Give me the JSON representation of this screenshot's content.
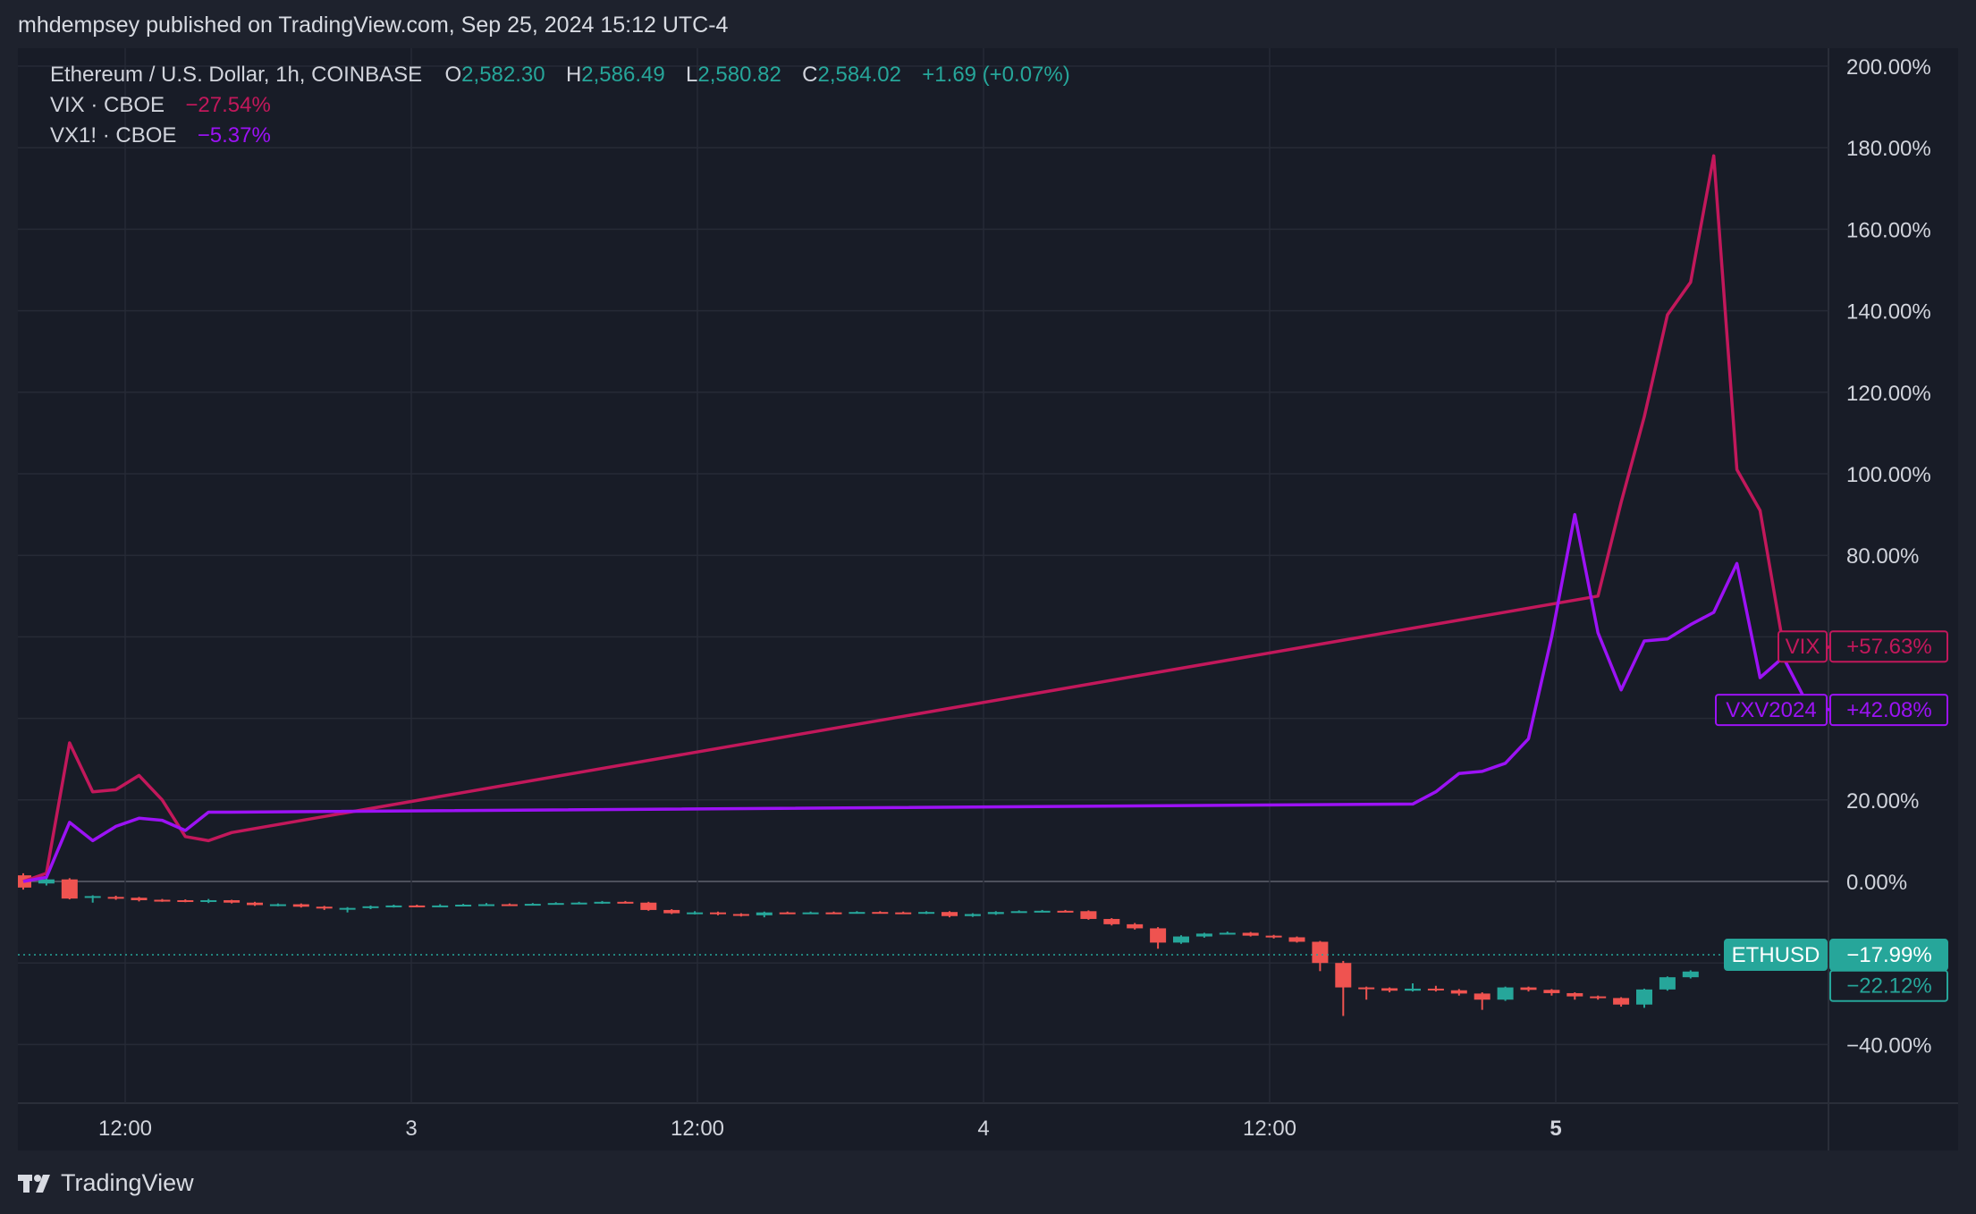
{
  "header": {
    "text": "mhdempsey published on TradingView.com, Sep 25, 2024 15:12 UTC-4"
  },
  "footer": {
    "brand": "TradingView",
    "logo_icon": "tradingview-logo-icon"
  },
  "legend": {
    "eth": {
      "symbol": "Ethereum / U.S. Dollar, 1h, COINBASE",
      "o_label": "O",
      "o": "2,582.30",
      "h_label": "H",
      "h": "2,586.49",
      "l_label": "L",
      "l": "2,580.82",
      "c_label": "C",
      "c": "2,584.02",
      "change": "+1.69 (+0.07%)"
    },
    "vix": {
      "symbol": "VIX · CBOE",
      "change": "−27.54%"
    },
    "vx1": {
      "symbol": "VX1! · CBOE",
      "change": "−5.37%"
    }
  },
  "colors": {
    "vix": "#c2185b",
    "vx1": "#9c12f5",
    "up": "#26a69a",
    "down": "#ef5350",
    "grid": "#262a36",
    "axis_text": "#d1d4dc",
    "bg": "#181c27"
  },
  "chart_data": {
    "type": "line",
    "x_labels": [
      "12:00",
      "3",
      "12:00",
      "4",
      "12:00",
      "5"
    ],
    "y_ticks": [
      "200.00%",
      "180.00%",
      "160.00%",
      "140.00%",
      "120.00%",
      "100.00%",
      "80.00%",
      "20.00%",
      "0.00%",
      "−40.00%"
    ],
    "ylim": [
      -54,
      202
    ],
    "series": [
      {
        "name": "VIX",
        "label": "VIX",
        "last": "+57.63%",
        "color": "#c2185b",
        "x": [
          0,
          1,
          2,
          3,
          4,
          5,
          6,
          7,
          8,
          9,
          68,
          69,
          70,
          71,
          72,
          73,
          74,
          75,
          76,
          77,
          78
        ],
        "y": [
          0,
          2,
          34,
          22,
          22.5,
          26,
          20,
          11,
          10,
          12,
          70,
          93,
          114,
          139,
          147,
          178,
          101,
          91,
          58,
          55,
          57.6
        ]
      },
      {
        "name": "VXV2024",
        "label": "VXV2024",
        "last": "+42.08%",
        "color": "#9c12f5",
        "x": [
          0,
          1,
          2,
          3,
          4,
          5,
          6,
          7,
          8,
          9,
          60,
          61,
          62,
          63,
          64,
          65,
          66,
          67,
          68,
          69,
          70,
          71,
          72,
          73,
          74,
          75,
          76,
          77,
          78
        ],
        "y": [
          0,
          1,
          14.5,
          10,
          13.5,
          15.5,
          15,
          12.5,
          17,
          17,
          19,
          22,
          26.5,
          27,
          29,
          35,
          60,
          90,
          61,
          47,
          59,
          59.5,
          63,
          66,
          78,
          50,
          55,
          44,
          42.08
        ]
      },
      {
        "name": "ETHUSD",
        "label": "ETHUSD",
        "last": "−17.99%",
        "color": "#26a69a"
      }
    ],
    "candles": [
      [
        0,
        1.5,
        -1.5,
        2,
        -2
      ],
      [
        1,
        -0.5,
        0.5,
        1,
        -1
      ],
      [
        2,
        0.5,
        -4.2,
        0.8,
        -4.4
      ],
      [
        3,
        -4,
        -3.6,
        -3.4,
        -5.2
      ],
      [
        4,
        -3.8,
        -4.2,
        -3.5,
        -4.5
      ],
      [
        5,
        -4,
        -4.6,
        -3.8,
        -4.9
      ],
      [
        6,
        -4.5,
        -4.7,
        -4.3,
        -5
      ],
      [
        7,
        -4.6,
        -4.9,
        -4.4,
        -5.1
      ],
      [
        8,
        -5,
        -4.6,
        -4.3,
        -5.3
      ],
      [
        9,
        -4.6,
        -5.2,
        -4.5,
        -5.4
      ],
      [
        10,
        -5.2,
        -5.8,
        -5,
        -6
      ],
      [
        11,
        -5.8,
        -5.6,
        -5.4,
        -6.1
      ],
      [
        12,
        -5.6,
        -6.2,
        -5.4,
        -6.4
      ],
      [
        13,
        -6.2,
        -6.6,
        -6,
        -7
      ],
      [
        14,
        -6.6,
        -6.5,
        -6.3,
        -7.6
      ],
      [
        15,
        -6.5,
        -6.1,
        -5.9,
        -6.8
      ],
      [
        16,
        -6.1,
        -5.9,
        -5.7,
        -6.4
      ],
      [
        17,
        -5.9,
        -6.1,
        -5.7,
        -6.3
      ],
      [
        18,
        -6.1,
        -5.9,
        -5.6,
        -6.3
      ],
      [
        19,
        -5.9,
        -5.7,
        -5.5,
        -6.1
      ],
      [
        20,
        -5.7,
        -5.6,
        -5.3,
        -6
      ],
      [
        21,
        -5.6,
        -5.7,
        -5.4,
        -5.9
      ],
      [
        22,
        -5.7,
        -5.5,
        -5.3,
        -5.9
      ],
      [
        23,
        -5.5,
        -5.3,
        -5.1,
        -5.7
      ],
      [
        24,
        -5.3,
        -5.2,
        -5,
        -5.5
      ],
      [
        25,
        -5.2,
        -5.0,
        -4.8,
        -5.5
      ],
      [
        26,
        -5.0,
        -5.2,
        -4.8,
        -5.4
      ],
      [
        27,
        -5.2,
        -7.0,
        -5,
        -7.2
      ],
      [
        28,
        -7,
        -7.8,
        -6.8,
        -8
      ],
      [
        29,
        -7.8,
        -7.6,
        -7.3,
        -8.1
      ],
      [
        30,
        -7.6,
        -8,
        -7.4,
        -8.3
      ],
      [
        31,
        -8,
        -8.3,
        -7.8,
        -8.6
      ],
      [
        32,
        -8.3,
        -7.6,
        -7.4,
        -8.8
      ],
      [
        33,
        -7.6,
        -7.8,
        -7.4,
        -8
      ],
      [
        34,
        -7.8,
        -7.6,
        -7.4,
        -8
      ],
      [
        35,
        -7.6,
        -7.7,
        -7.4,
        -7.9
      ],
      [
        36,
        -7.7,
        -7.5,
        -7.3,
        -7.9
      ],
      [
        37,
        -7.5,
        -7.6,
        -7.3,
        -7.8
      ],
      [
        38,
        -7.6,
        -7.8,
        -7.4,
        -8
      ],
      [
        39,
        -7.8,
        -7.5,
        -7.3,
        -8
      ],
      [
        40,
        -7.5,
        -8.5,
        -7.3,
        -8.8
      ],
      [
        41,
        -8.5,
        -8,
        -7.8,
        -8.7
      ],
      [
        42,
        -8,
        -7.5,
        -7.3,
        -8.2
      ],
      [
        43,
        -7.5,
        -7.3,
        -7.1,
        -7.7
      ],
      [
        44,
        -7.3,
        -7.2,
        -7,
        -7.5
      ],
      [
        45,
        -7.2,
        -7.3,
        -7,
        -7.5
      ],
      [
        46,
        -7.3,
        -9.2,
        -7.1,
        -9.4
      ],
      [
        47,
        -9.2,
        -10.5,
        -9,
        -10.8
      ],
      [
        48,
        -10.5,
        -11.5,
        -10.2,
        -11.8
      ],
      [
        49,
        -11.5,
        -15.0,
        -11.2,
        -16.5
      ],
      [
        50,
        -15,
        -13.5,
        -13.2,
        -15.3
      ],
      [
        51,
        -13.5,
        -12.8,
        -12.6,
        -13.8
      ],
      [
        52,
        -12.8,
        -12.6,
        -12.3,
        -13
      ],
      [
        53,
        -12.6,
        -13.3,
        -12.4,
        -13.5
      ],
      [
        54,
        -13.3,
        -13.7,
        -13.1,
        -14
      ],
      [
        55,
        -13.7,
        -14.8,
        -13.5,
        -15
      ],
      [
        56,
        -14.8,
        -20,
        -14.6,
        -22
      ],
      [
        57,
        -20,
        -26,
        -19.5,
        -33
      ],
      [
        58,
        -26,
        -26.2,
        -25.8,
        -29
      ],
      [
        59,
        -26.2,
        -26.8,
        -26,
        -27.2
      ],
      [
        60,
        -26.8,
        -26.3,
        -25,
        -27
      ],
      [
        61,
        -26.3,
        -26.7,
        -25.6,
        -27
      ],
      [
        62,
        -26.7,
        -27.5,
        -26.4,
        -28
      ],
      [
        63,
        -27.5,
        -29,
        -27.2,
        -31.5
      ],
      [
        64,
        -29,
        -26,
        -25.8,
        -29.3
      ],
      [
        65,
        -26,
        -26.6,
        -25.8,
        -27
      ],
      [
        66,
        -26.6,
        -27.4,
        -26.4,
        -28
      ],
      [
        67,
        -27.4,
        -28.2,
        -27.2,
        -29
      ],
      [
        68,
        -28.2,
        -28.6,
        -28,
        -29
      ],
      [
        69,
        -28.6,
        -30.2,
        -28.4,
        -30.7
      ],
      [
        70,
        -30.2,
        -26.5,
        -26.3,
        -31
      ],
      [
        71,
        -26.5,
        -23.5,
        -23.3,
        -26.8
      ],
      [
        72,
        -23.5,
        -22.1,
        -21.8,
        -23.8
      ]
    ],
    "eth_last": -17.99
  }
}
